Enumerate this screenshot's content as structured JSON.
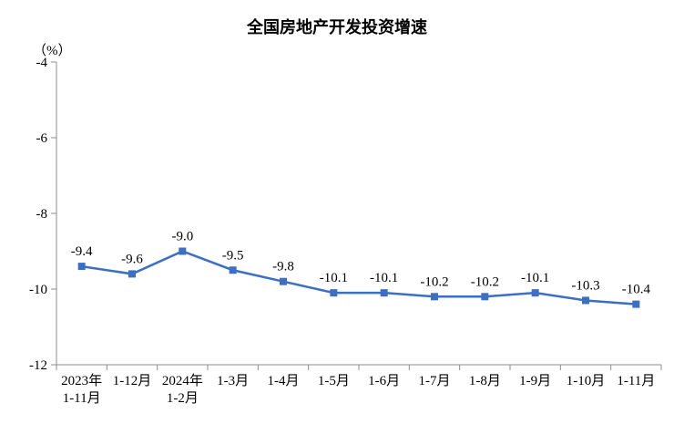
{
  "chart_data": {
    "type": "line",
    "title": "全国房地产开发投资增速",
    "ylabel": "（%）",
    "categories": [
      [
        "2023年",
        "1-11月"
      ],
      [
        "1-12月"
      ],
      [
        "2024年",
        "1-2月"
      ],
      [
        "1-3月"
      ],
      [
        "1-4月"
      ],
      [
        "1-5月"
      ],
      [
        "1-6月"
      ],
      [
        "1-7月"
      ],
      [
        "1-8月"
      ],
      [
        "1-9月"
      ],
      [
        "1-10月"
      ],
      [
        "1-11月"
      ]
    ],
    "values": [
      -9.4,
      -9.6,
      -9.0,
      -9.5,
      -9.8,
      -10.1,
      -10.1,
      -10.2,
      -10.2,
      -10.1,
      -10.3,
      -10.4
    ],
    "labels": [
      "-9.4",
      "-9.6",
      "-9.0",
      "-9.5",
      "-9.8",
      "-10.1",
      "-10.1",
      "-10.2",
      "-10.2",
      "-10.1",
      "-10.3",
      "-10.4"
    ],
    "ylim": [
      -12,
      -4
    ],
    "yticks": [
      -4,
      -6,
      -8,
      -10,
      -12
    ],
    "line_color": "#3A6FC4",
    "grid": false,
    "legend": "none",
    "marker": "square"
  }
}
